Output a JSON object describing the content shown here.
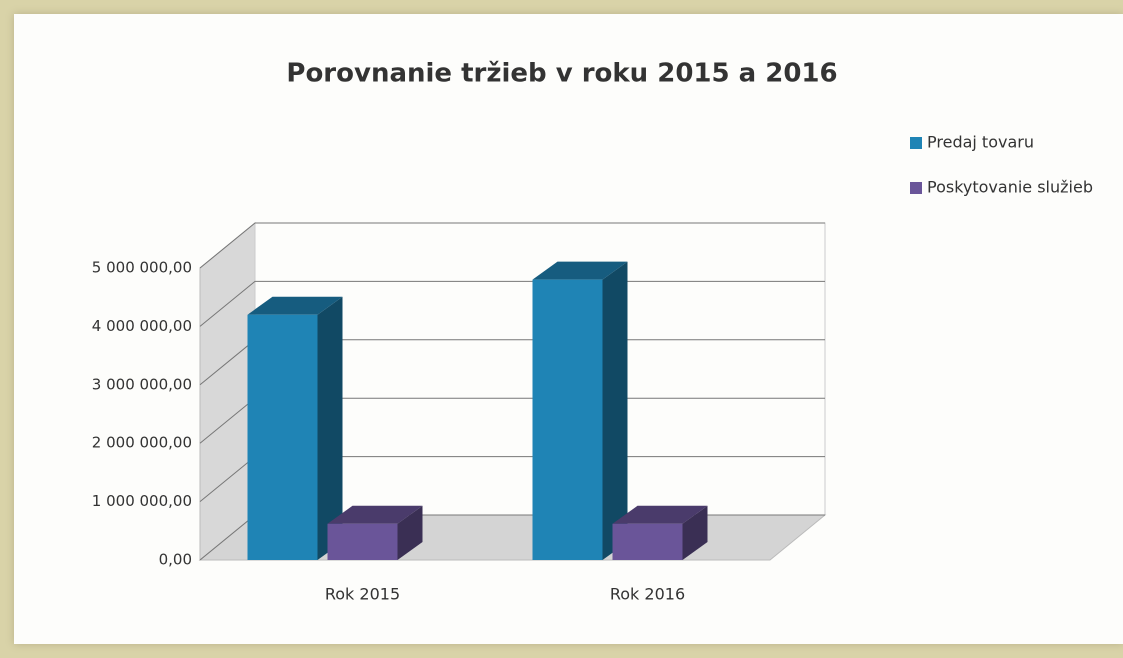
{
  "chart_data": {
    "type": "bar3d",
    "title": "Porovnanie tržieb v roku 2015 a 2016",
    "categories": [
      "Rok 2015",
      "Rok 2016"
    ],
    "series": [
      {
        "name": "Predaj tovaru",
        "color": "#1f84b5",
        "values": [
          4200000,
          4800000
        ]
      },
      {
        "name": "Poskytovanie služieb",
        "color": "#6a5599",
        "values": [
          620000,
          620000
        ]
      }
    ],
    "ylim": [
      0,
      5000000
    ],
    "yticks": [
      {
        "value": 0,
        "label": "0,00"
      },
      {
        "value": 1000000,
        "label": "1 000 000,00"
      },
      {
        "value": 2000000,
        "label": "2 000 000,00"
      },
      {
        "value": 3000000,
        "label": "3 000 000,00"
      },
      {
        "value": 4000000,
        "label": "4 000 000,00"
      },
      {
        "value": 5000000,
        "label": "5 000 000,00"
      }
    ],
    "grid": true,
    "legend": "top-right"
  }
}
